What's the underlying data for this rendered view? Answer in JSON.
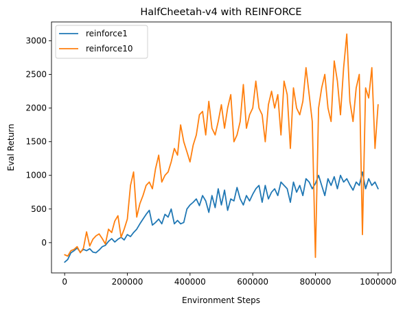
{
  "chart_data": {
    "type": "line",
    "title": "HalfCheetah-v4 with REINFORCE",
    "xlabel": "Environment Steps",
    "ylabel": "Eval Return",
    "xlim": [
      -42000,
      1042000
    ],
    "ylim": [
      -450,
      3280
    ],
    "x_ticks": [
      0,
      200000,
      400000,
      600000,
      800000,
      1000000
    ],
    "y_ticks": [
      0,
      500,
      1000,
      1500,
      2000,
      2500,
      3000
    ],
    "x_tick_labels": [
      "0",
      "200000",
      "400000",
      "600000",
      "800000",
      "1000000"
    ],
    "y_tick_labels": [
      "0",
      "500",
      "1000",
      "1500",
      "2000",
      "2500",
      "3000"
    ],
    "grid": false,
    "legend_position": "upper-left",
    "series": [
      {
        "name": "reinforce1",
        "color": "#1f77b4",
        "x": [
          0,
          10000,
          20000,
          30000,
          40000,
          50000,
          60000,
          70000,
          80000,
          90000,
          100000,
          110000,
          120000,
          130000,
          140000,
          150000,
          160000,
          170000,
          180000,
          190000,
          200000,
          210000,
          220000,
          230000,
          240000,
          250000,
          260000,
          270000,
          280000,
          290000,
          300000,
          310000,
          320000,
          330000,
          340000,
          350000,
          360000,
          370000,
          380000,
          390000,
          400000,
          410000,
          420000,
          430000,
          440000,
          450000,
          460000,
          470000,
          480000,
          490000,
          500000,
          510000,
          520000,
          530000,
          540000,
          550000,
          560000,
          570000,
          580000,
          590000,
          600000,
          610000,
          620000,
          630000,
          640000,
          650000,
          660000,
          670000,
          680000,
          690000,
          700000,
          710000,
          720000,
          730000,
          740000,
          750000,
          760000,
          770000,
          780000,
          790000,
          800000,
          810000,
          820000,
          830000,
          840000,
          850000,
          860000,
          870000,
          880000,
          890000,
          900000,
          910000,
          920000,
          930000,
          940000,
          950000,
          960000,
          970000,
          980000,
          990000,
          1000000
        ],
        "y": [
          -290,
          -250,
          -150,
          -120,
          -80,
          -140,
          -100,
          -120,
          -90,
          -140,
          -150,
          -110,
          -60,
          -40,
          20,
          60,
          10,
          50,
          80,
          40,
          120,
          90,
          150,
          200,
          280,
          350,
          420,
          480,
          260,
          300,
          350,
          280,
          420,
          380,
          500,
          280,
          330,
          280,
          300,
          500,
          560,
          600,
          650,
          550,
          700,
          620,
          450,
          700,
          520,
          800,
          560,
          780,
          480,
          650,
          620,
          820,
          650,
          560,
          700,
          620,
          720,
          800,
          850,
          600,
          850,
          650,
          750,
          800,
          700,
          900,
          850,
          800,
          600,
          900,
          750,
          850,
          700,
          950,
          900,
          800,
          880,
          1000,
          850,
          700,
          950,
          850,
          980,
          800,
          1000,
          900,
          950,
          860,
          780,
          900,
          850,
          1050,
          800,
          950,
          850,
          900,
          800
        ]
      },
      {
        "name": "reinforce10",
        "color": "#ff7f0e",
        "x": [
          0,
          10000,
          20000,
          30000,
          40000,
          50000,
          60000,
          70000,
          80000,
          90000,
          100000,
          110000,
          120000,
          130000,
          140000,
          150000,
          160000,
          170000,
          180000,
          190000,
          200000,
          210000,
          220000,
          230000,
          240000,
          250000,
          260000,
          270000,
          280000,
          290000,
          300000,
          310000,
          320000,
          330000,
          340000,
          350000,
          360000,
          370000,
          380000,
          390000,
          400000,
          410000,
          420000,
          430000,
          440000,
          450000,
          460000,
          470000,
          480000,
          490000,
          500000,
          510000,
          520000,
          530000,
          540000,
          550000,
          560000,
          570000,
          580000,
          590000,
          600000,
          610000,
          620000,
          630000,
          640000,
          650000,
          660000,
          670000,
          680000,
          690000,
          700000,
          710000,
          720000,
          730000,
          740000,
          750000,
          760000,
          770000,
          780000,
          790000,
          800000,
          810000,
          820000,
          830000,
          840000,
          850000,
          860000,
          870000,
          880000,
          890000,
          900000,
          910000,
          920000,
          930000,
          940000,
          950000,
          960000,
          970000,
          980000,
          990000,
          1000000
        ],
        "y": [
          -180,
          -200,
          -120,
          -100,
          -60,
          -150,
          -80,
          160,
          -50,
          50,
          100,
          130,
          60,
          -20,
          200,
          150,
          320,
          400,
          80,
          200,
          350,
          850,
          1050,
          380,
          580,
          700,
          850,
          900,
          800,
          1100,
          1300,
          900,
          1000,
          1050,
          1200,
          1400,
          1300,
          1750,
          1500,
          1350,
          1200,
          1450,
          1600,
          1900,
          1950,
          1600,
          2100,
          1700,
          1600,
          1800,
          2050,
          1700,
          2000,
          2200,
          1500,
          1600,
          1800,
          2350,
          1700,
          1900,
          2000,
          2400,
          2000,
          1900,
          1500,
          2050,
          2250,
          2000,
          2200,
          1600,
          2400,
          2200,
          1400,
          2300,
          2000,
          1900,
          2100,
          2600,
          2200,
          1800,
          -220,
          2000,
          2300,
          2500,
          2000,
          1800,
          2700,
          2400,
          1900,
          2600,
          3100,
          2100,
          1800,
          2300,
          2500,
          120,
          2300,
          2150,
          2600,
          1400,
          2050
        ]
      }
    ]
  }
}
